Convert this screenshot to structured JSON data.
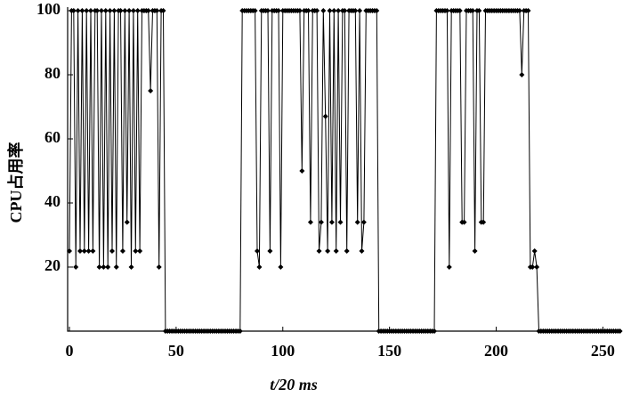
{
  "chart_data": {
    "type": "line",
    "xlabel": "t/20 ms",
    "ylabel": "CPU占用率",
    "xlim": [
      0,
      259
    ],
    "ylim": [
      0,
      100
    ],
    "xticks": [
      0,
      50,
      100,
      150,
      200,
      250
    ],
    "yticks": [
      20,
      40,
      60,
      80,
      100
    ],
    "color": "#000000",
    "marker": "diamond",
    "x": [
      0,
      1,
      2,
      3,
      4,
      5,
      6,
      7,
      8,
      9,
      10,
      11,
      12,
      13,
      14,
      15,
      16,
      17,
      18,
      19,
      20,
      21,
      22,
      23,
      24,
      25,
      26,
      27,
      28,
      29,
      30,
      31,
      32,
      33,
      34,
      35,
      36,
      37,
      38,
      39,
      40,
      41,
      42,
      43,
      44,
      45,
      46,
      47,
      48,
      49,
      50,
      51,
      52,
      53,
      54,
      55,
      56,
      57,
      58,
      59,
      60,
      61,
      62,
      63,
      64,
      65,
      66,
      67,
      68,
      69,
      70,
      71,
      72,
      73,
      74,
      75,
      76,
      77,
      78,
      79,
      80,
      81,
      82,
      83,
      84,
      85,
      86,
      87,
      88,
      89,
      90,
      91,
      92,
      93,
      94,
      95,
      96,
      97,
      98,
      99,
      100,
      101,
      102,
      103,
      104,
      105,
      106,
      107,
      108,
      109,
      110,
      111,
      112,
      113,
      114,
      115,
      116,
      117,
      118,
      119,
      120,
      121,
      122,
      123,
      124,
      125,
      126,
      127,
      128,
      129,
      130,
      131,
      132,
      133,
      134,
      135,
      136,
      137,
      138,
      139,
      140,
      141,
      142,
      143,
      144,
      145,
      146,
      147,
      148,
      149,
      150,
      151,
      152,
      153,
      154,
      155,
      156,
      157,
      158,
      159,
      160,
      161,
      162,
      163,
      164,
      165,
      166,
      167,
      168,
      169,
      170,
      171,
      172,
      173,
      174,
      175,
      176,
      177,
      178,
      179,
      180,
      181,
      182,
      183,
      184,
      185,
      186,
      187,
      188,
      189,
      190,
      191,
      192,
      193,
      194,
      195,
      196,
      197,
      198,
      199,
      200,
      201,
      202,
      203,
      204,
      205,
      206,
      207,
      208,
      209,
      210,
      211,
      212,
      213,
      214,
      215,
      216,
      217,
      218,
      219,
      220,
      221,
      222,
      223,
      224,
      225,
      226,
      227,
      228,
      229,
      230,
      231,
      232,
      233,
      234,
      235,
      236,
      237,
      238,
      239,
      240,
      241,
      242,
      243,
      244,
      245,
      246,
      247,
      248,
      249,
      250,
      251,
      252,
      253,
      254,
      255,
      256,
      257,
      258
    ],
    "values": [
      25,
      100,
      100,
      20,
      100,
      25,
      100,
      25,
      100,
      25,
      100,
      25,
      100,
      100,
      20,
      100,
      20,
      100,
      20,
      100,
      25,
      100,
      20,
      100,
      100,
      25,
      100,
      34,
      100,
      20,
      100,
      25,
      100,
      25,
      100,
      100,
      100,
      100,
      75,
      100,
      100,
      100,
      20,
      100,
      100,
      0,
      0,
      0,
      0,
      0,
      0,
      0,
      0,
      0,
      0,
      0,
      0,
      0,
      0,
      0,
      0,
      0,
      0,
      0,
      0,
      0,
      0,
      0,
      0,
      0,
      0,
      0,
      0,
      0,
      0,
      0,
      0,
      0,
      0,
      0,
      0,
      100,
      100,
      100,
      100,
      100,
      100,
      100,
      25,
      20,
      100,
      100,
      100,
      100,
      25,
      100,
      100,
      100,
      100,
      20,
      100,
      100,
      100,
      100,
      100,
      100,
      100,
      100,
      100,
      50,
      100,
      100,
      100,
      34,
      100,
      100,
      100,
      25,
      34,
      100,
      67,
      25,
      100,
      34,
      100,
      25,
      100,
      34,
      100,
      100,
      25,
      100,
      100,
      100,
      100,
      34,
      100,
      25,
      34,
      100,
      100,
      100,
      100,
      100,
      100,
      0,
      0,
      0,
      0,
      0,
      0,
      0,
      0,
      0,
      0,
      0,
      0,
      0,
      0,
      0,
      0,
      0,
      0,
      0,
      0,
      0,
      0,
      0,
      0,
      0,
      0,
      0,
      100,
      100,
      100,
      100,
      100,
      100,
      20,
      100,
      100,
      100,
      100,
      100,
      34,
      34,
      100,
      100,
      100,
      100,
      25,
      100,
      100,
      34,
      34,
      100,
      100,
      100,
      100,
      100,
      100,
      100,
      100,
      100,
      100,
      100,
      100,
      100,
      100,
      100,
      100,
      100,
      80,
      100,
      100,
      100,
      20,
      20,
      25,
      20,
      0,
      0,
      0,
      0,
      0,
      0,
      0,
      0,
      0,
      0,
      0,
      0,
      0,
      0,
      0,
      0,
      0,
      0,
      0,
      0,
      0,
      0,
      0,
      0,
      0,
      0,
      0,
      0,
      0,
      0,
      0,
      0,
      0,
      0,
      0,
      0,
      0,
      0,
      0
    ]
  }
}
